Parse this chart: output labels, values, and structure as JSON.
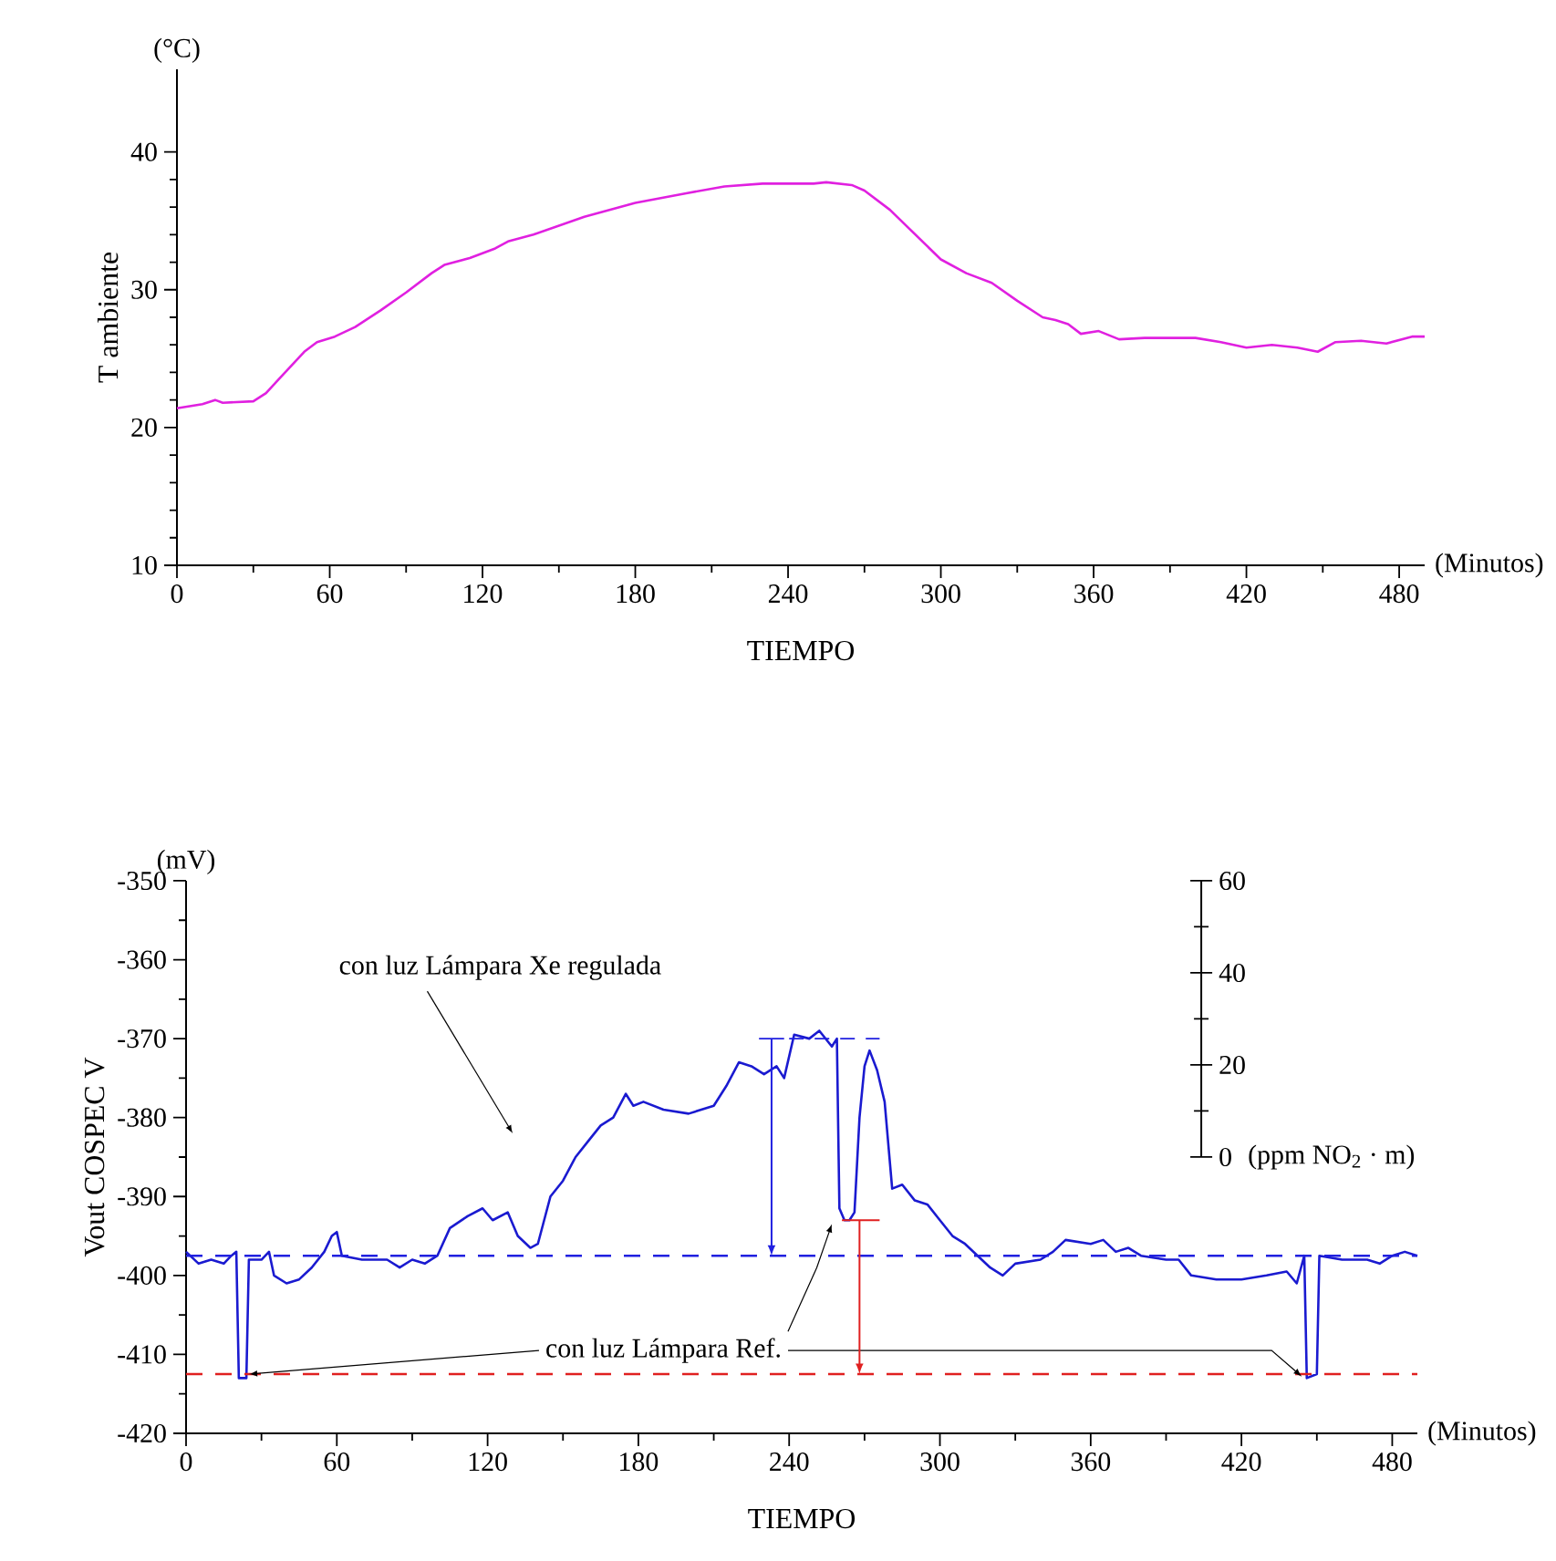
{
  "chart_data": [
    {
      "type": "line",
      "xlabel": "TIEMPO",
      "ylabel": "T  ambiente",
      "annotations": [
        "(°C)",
        "(Minutos)"
      ],
      "xlim": [
        0,
        490
      ],
      "ylim": [
        10,
        46
      ],
      "xticks": [
        0,
        60,
        120,
        180,
        240,
        300,
        360,
        420,
        480
      ],
      "yticks": [
        10,
        20,
        30,
        40
      ],
      "grid": false,
      "marker": "none",
      "line_style": "solid",
      "x": [
        0,
        10,
        15,
        18,
        30,
        35,
        40,
        50,
        55,
        62,
        70,
        80,
        90,
        100,
        105,
        115,
        125,
        130,
        140,
        160,
        180,
        200,
        215,
        230,
        250,
        255,
        265,
        270,
        280,
        300,
        310,
        320,
        330,
        340,
        345,
        350,
        355,
        362,
        370,
        380,
        400,
        410,
        420,
        430,
        440,
        448,
        455,
        465,
        475,
        485,
        490
      ],
      "series": [
        {
          "color": "#e020e0",
          "values": [
            21.4,
            21.7,
            22.0,
            21.8,
            21.9,
            22.5,
            23.5,
            25.5,
            26.2,
            26.6,
            27.3,
            28.5,
            29.8,
            31.2,
            31.8,
            32.3,
            33.0,
            33.5,
            34.0,
            35.3,
            36.3,
            37.0,
            37.5,
            37.7,
            37.7,
            37.8,
            37.6,
            37.2,
            35.8,
            32.2,
            31.2,
            30.5,
            29.2,
            28.0,
            27.8,
            27.5,
            26.8,
            27.0,
            26.4,
            26.5,
            26.5,
            26.2,
            25.8,
            26.0,
            25.8,
            25.5,
            26.2,
            26.3,
            26.1,
            26.6,
            26.6
          ]
        }
      ]
    },
    {
      "type": "line",
      "xlabel": "TIEMPO",
      "ylabel": "Vout   COSPEC V",
      "y2label": "(ppm NO$_{2}$ · m)",
      "annotations": [
        "(mV)",
        "(Minutos)",
        "con luz Lámpara Xe  regulada",
        {
          "text": "con luz Lámpara Ref.",
          "x": 25,
          "y": -412.5
        }
      ],
      "xlim": [
        0,
        490
      ],
      "ylim": [
        -420,
        -350
      ],
      "xticks": [
        0,
        60,
        120,
        180,
        240,
        300,
        360,
        420,
        480
      ],
      "yticks": [
        -420,
        -410,
        -400,
        -390,
        -380,
        -370,
        -360,
        -350
      ],
      "y2lim": [
        -60,
        60
      ],
      "y2ticks": [
        0,
        20,
        40,
        60
      ],
      "grid": false,
      "marker": "none",
      "line_style": "solid",
      "ref_lines": [
        {
          "axis": "y",
          "value": -397.5,
          "color": "#2020e0",
          "line_style": "dashed"
        },
        {
          "axis": "y",
          "value": -412.5,
          "color": "#e02020",
          "line_style": "dashed"
        }
      ],
      "x": [
        0,
        5,
        10,
        15,
        18,
        20,
        21,
        24,
        25,
        30,
        33,
        35,
        40,
        45,
        50,
        55,
        58,
        60,
        62,
        70,
        80,
        85,
        90,
        95,
        100,
        105,
        112,
        118,
        122,
        128,
        132,
        137,
        140,
        145,
        150,
        155,
        160,
        165,
        170,
        175,
        178,
        182,
        190,
        200,
        210,
        215,
        220,
        225,
        230,
        235,
        238,
        242,
        248,
        252,
        257,
        259,
        260,
        262,
        264,
        266,
        268,
        270,
        272,
        275,
        278,
        281,
        285,
        290,
        295,
        300,
        305,
        310,
        315,
        320,
        325,
        330,
        340,
        345,
        350,
        360,
        365,
        370,
        375,
        380,
        390,
        395,
        400,
        410,
        420,
        430,
        438,
        442,
        445,
        446,
        450,
        451,
        460,
        470,
        475,
        480,
        485,
        490
      ],
      "series": [
        {
          "color": "#1a1ad0",
          "values": [
            -397,
            -398.5,
            -398,
            -398.5,
            -397.5,
            -397,
            -413,
            -413,
            -398,
            -398,
            -397,
            -400,
            -401,
            -400.5,
            -399,
            -397,
            -395,
            -394.5,
            -397.5,
            -398,
            -398,
            -399,
            -398,
            -398.5,
            -397.5,
            -394,
            -392.5,
            -391.5,
            -393,
            -392,
            -395,
            -396.5,
            -396,
            -390,
            -388,
            -385,
            -383,
            -381,
            -380,
            -377,
            -378.5,
            -378,
            -379,
            -379.5,
            -378.5,
            -376,
            -373,
            -373.5,
            -374.5,
            -373.5,
            -375,
            -369.5,
            -370,
            -369,
            -371,
            -370,
            -391.5,
            -393,
            -393,
            -392,
            -380,
            -373.5,
            -371.5,
            -374,
            -378,
            -389,
            -388.5,
            -390.5,
            -391,
            -393,
            -395,
            -396,
            -397.5,
            -399,
            -400,
            -398.5,
            -398,
            -397,
            -395.5,
            -396,
            -395.5,
            -397,
            -396.5,
            -397.5,
            -398,
            -398,
            -400,
            -400.5,
            -400.5,
            -400,
            -399.5,
            -401,
            -397.5,
            -413,
            -412.5,
            -397.5,
            -398,
            -398,
            -398.5,
            -397.5,
            -397,
            -397.5
          ]
        }
      ]
    }
  ]
}
